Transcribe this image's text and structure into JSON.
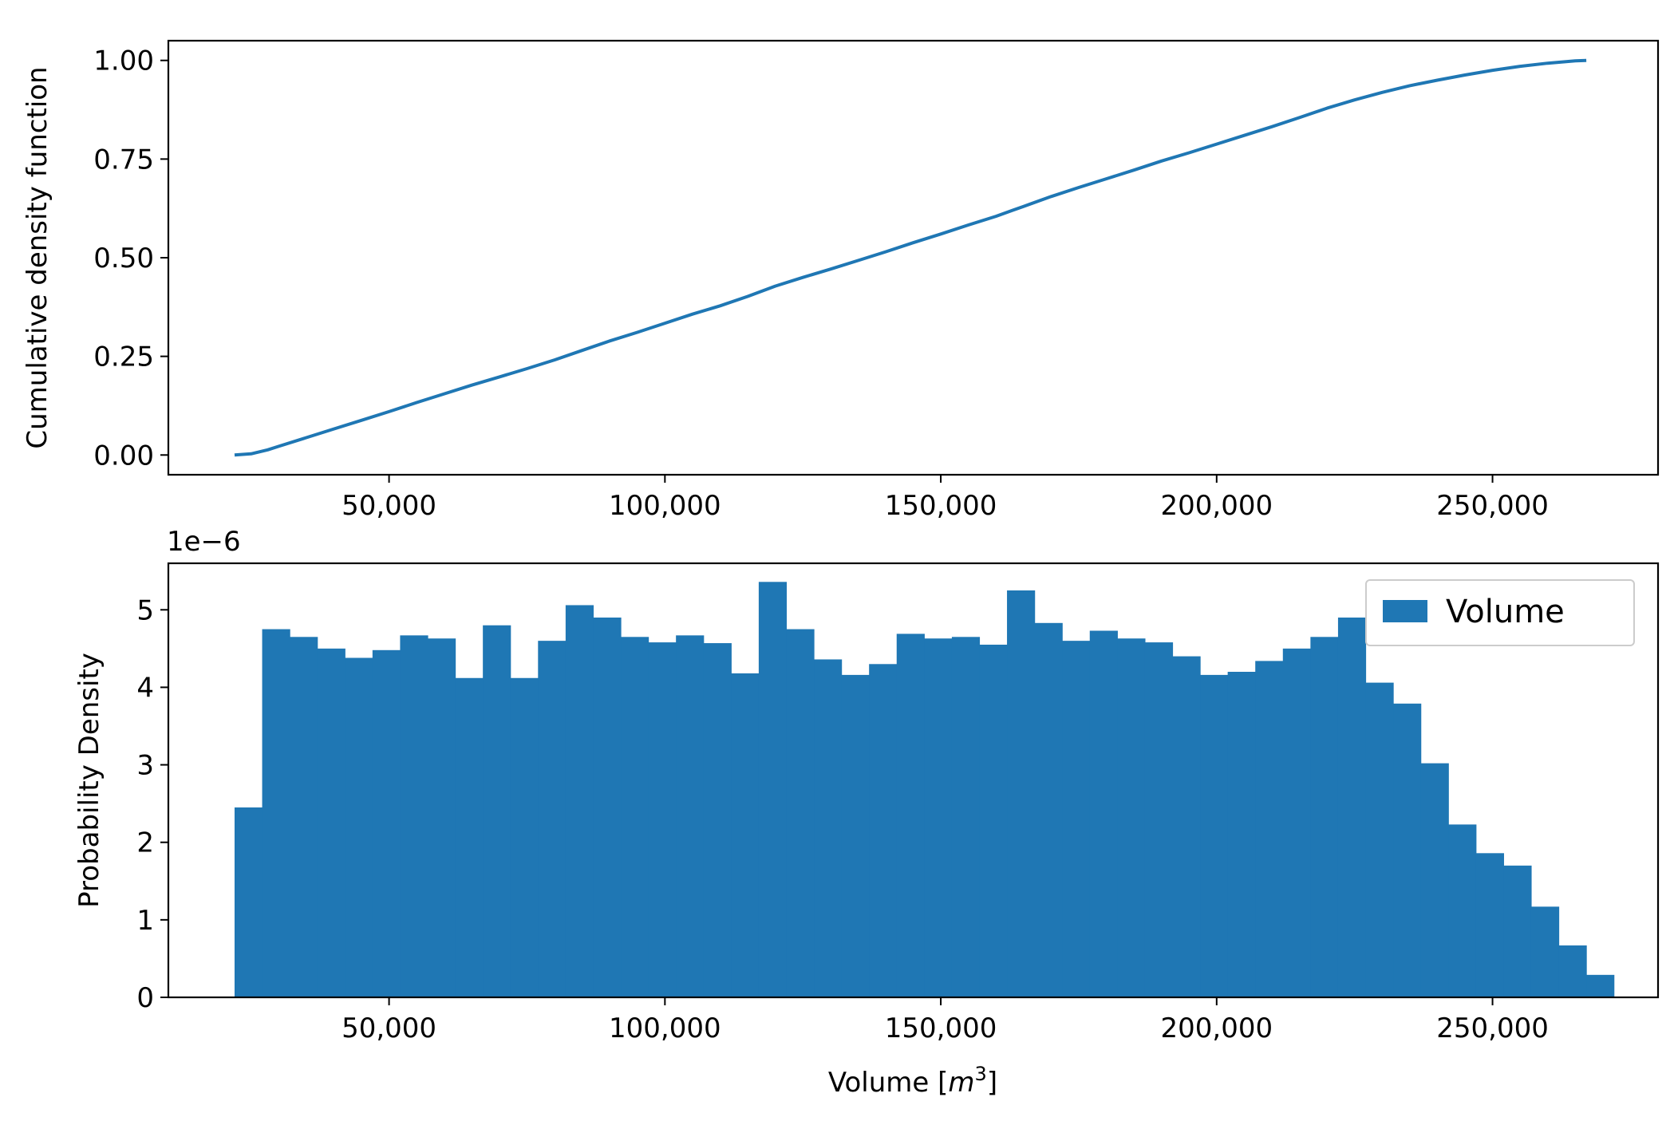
{
  "chart_data": [
    {
      "type": "line",
      "ylabel": "Cumulative density function",
      "xlabel": "",
      "xlim": [
        10000,
        280000
      ],
      "ylim": [
        -0.05,
        1.05
      ],
      "x_ticks": [
        50000,
        100000,
        150000,
        200000,
        250000
      ],
      "x_tick_labels": [
        "50,000",
        "100,000",
        "150,000",
        "200,000",
        "250,000"
      ],
      "y_ticks": [
        0,
        0.25,
        0.5,
        0.75,
        1.0
      ],
      "y_tick_labels": [
        "0.00",
        "0.25",
        "0.50",
        "0.75",
        "1.00"
      ],
      "color": "#1f77b4",
      "grid": false,
      "series": [
        {
          "x": [
            22000,
            25000,
            28000,
            30000,
            35000,
            40000,
            45000,
            50000,
            55000,
            60000,
            65000,
            70000,
            75000,
            80000,
            85000,
            90000,
            95000,
            100000,
            105000,
            110000,
            115000,
            120000,
            125000,
            130000,
            135000,
            140000,
            145000,
            150000,
            155000,
            160000,
            165000,
            170000,
            175000,
            180000,
            185000,
            190000,
            195000,
            200000,
            205000,
            210000,
            215000,
            220000,
            225000,
            230000,
            235000,
            240000,
            245000,
            250000,
            255000,
            260000,
            265000,
            267000
          ],
          "y": [
            0.0,
            0.003,
            0.013,
            0.022,
            0.044,
            0.066,
            0.088,
            0.11,
            0.133,
            0.155,
            0.177,
            0.198,
            0.219,
            0.241,
            0.265,
            0.289,
            0.311,
            0.334,
            0.357,
            0.378,
            0.402,
            0.428,
            0.45,
            0.471,
            0.493,
            0.515,
            0.538,
            0.56,
            0.583,
            0.605,
            0.63,
            0.655,
            0.678,
            0.7,
            0.722,
            0.745,
            0.766,
            0.788,
            0.81,
            0.832,
            0.855,
            0.879,
            0.9,
            0.919,
            0.936,
            0.95,
            0.963,
            0.975,
            0.985,
            0.993,
            0.999,
            1.0
          ]
        }
      ]
    },
    {
      "type": "bar",
      "subtype": "histogram",
      "ylabel": "Probability Density",
      "xlabel": "Volume [m3]",
      "xlabel_parts": {
        "pre": "Volume [",
        "var": "m",
        "sup": "3",
        "post": "]"
      },
      "y_offset_label": "1e−6",
      "xlim": [
        10000,
        280000
      ],
      "ylim": [
        0,
        5.6
      ],
      "x_ticks": [
        50000,
        100000,
        150000,
        200000,
        250000
      ],
      "x_tick_labels": [
        "50,000",
        "100,000",
        "150,000",
        "200,000",
        "250,000"
      ],
      "y_ticks": [
        0,
        1,
        2,
        3,
        4,
        5
      ],
      "y_tick_labels": [
        "0",
        "1",
        "2",
        "3",
        "4",
        "5"
      ],
      "color": "#1f77b4",
      "grid": false,
      "legend": {
        "location": "upper right",
        "entries": [
          "Volume"
        ]
      },
      "bin_start": 22000,
      "bin_width": 5000,
      "series": [
        {
          "name": "Volume",
          "values": [
            2.45,
            4.75,
            4.65,
            4.5,
            4.38,
            4.48,
            4.67,
            4.63,
            4.12,
            4.8,
            4.12,
            4.6,
            5.06,
            4.9,
            4.65,
            4.58,
            4.67,
            4.57,
            4.18,
            5.36,
            4.75,
            4.36,
            4.16,
            4.3,
            4.69,
            4.63,
            4.65,
            4.55,
            5.25,
            4.83,
            4.6,
            4.73,
            4.63,
            4.58,
            4.4,
            4.16,
            4.2,
            4.34,
            4.5,
            4.65,
            4.9,
            4.06,
            3.79,
            3.02,
            2.23,
            1.86,
            1.7,
            1.17,
            0.67,
            0.29
          ]
        }
      ]
    }
  ]
}
